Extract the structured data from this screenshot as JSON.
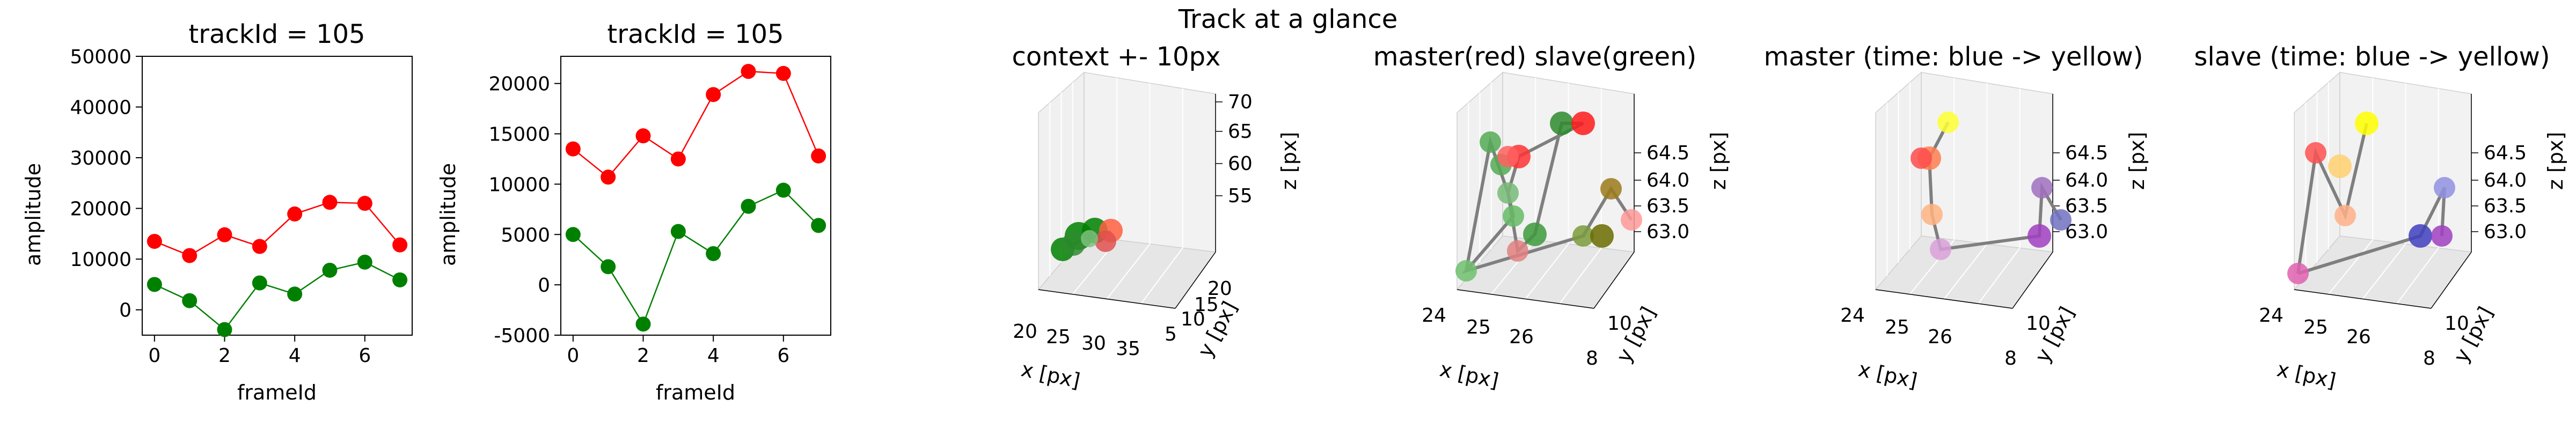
{
  "figure_title": "Track at a glance",
  "chart_data": [
    {
      "type": "line",
      "title": "trackId = 105",
      "xlabel": "frameId",
      "ylabel": "amplitude",
      "x": [
        0,
        1,
        2,
        3,
        4,
        5,
        6,
        7
      ],
      "xlim": [
        -0.35,
        7.35
      ],
      "ylim": [
        -5000,
        50000
      ],
      "xticks": [
        0,
        2,
        4,
        6
      ],
      "yticks": [
        0,
        10000,
        20000,
        30000,
        40000,
        50000
      ],
      "grid": false,
      "series": [
        {
          "color": "#ff0000",
          "values": [
            13500,
            10700,
            14800,
            12500,
            18900,
            21200,
            21000,
            12800
          ]
        },
        {
          "color": "#008000",
          "values": [
            5000,
            1800,
            -3900,
            5300,
            3100,
            7800,
            9400,
            5900
          ]
        }
      ]
    },
    {
      "type": "line",
      "title": "trackId = 105",
      "xlabel": "frameId",
      "ylabel": "amplitude",
      "x": [
        0,
        1,
        2,
        3,
        4,
        5,
        6,
        7
      ],
      "xlim": [
        -0.35,
        7.35
      ],
      "ylim": [
        -5000,
        22700
      ],
      "xticks": [
        0,
        2,
        4,
        6
      ],
      "yticks": [
        -5000,
        0,
        5000,
        10000,
        15000,
        20000
      ],
      "grid": false,
      "series": [
        {
          "color": "#ff0000",
          "values": [
            13500,
            10700,
            14800,
            12500,
            18900,
            21200,
            21000,
            12800
          ]
        },
        {
          "color": "#008000",
          "values": [
            5000,
            1800,
            -3900,
            5300,
            3100,
            7800,
            9400,
            5900
          ]
        }
      ]
    },
    {
      "type": "scatter",
      "title": "context +- 10px",
      "xlabel": "x [px]",
      "ylabel": "y [px]",
      "zlabel": "z [px]",
      "xticks": [
        20,
        25,
        30,
        35
      ],
      "yticks": [
        5,
        10,
        15,
        20
      ],
      "zticks": [
        55,
        60,
        65,
        70
      ],
      "points_note": "tight cluster of green and red markers near x≈25, y≈10, z≈63"
    },
    {
      "type": "scatter",
      "title": "master(red) slave(green)",
      "xlabel": "x [px]",
      "ylabel": "y [px]",
      "zlabel": "z [px]",
      "xticks": [
        24,
        25,
        26
      ],
      "yticks": [
        8,
        10
      ],
      "zticks": [
        63.0,
        63.5,
        64.0,
        64.5
      ]
    },
    {
      "type": "scatter",
      "title": "master (time: blue -> yellow)",
      "xlabel": "x [px]",
      "ylabel": "y [px]",
      "zlabel": "z [px]",
      "xticks": [
        24,
        25,
        26
      ],
      "yticks": [
        8,
        10
      ],
      "zticks": [
        63.0,
        63.5,
        64.0,
        64.5
      ]
    },
    {
      "type": "scatter",
      "title": "slave (time: blue -> yellow)",
      "xlabel": "x [px]",
      "ylabel": "y [px]",
      "zlabel": "z [px]",
      "xticks": [
        24,
        25,
        26
      ],
      "yticks": [
        8,
        10
      ],
      "zticks": [
        63.0,
        63.5,
        64.0,
        64.5
      ]
    }
  ]
}
